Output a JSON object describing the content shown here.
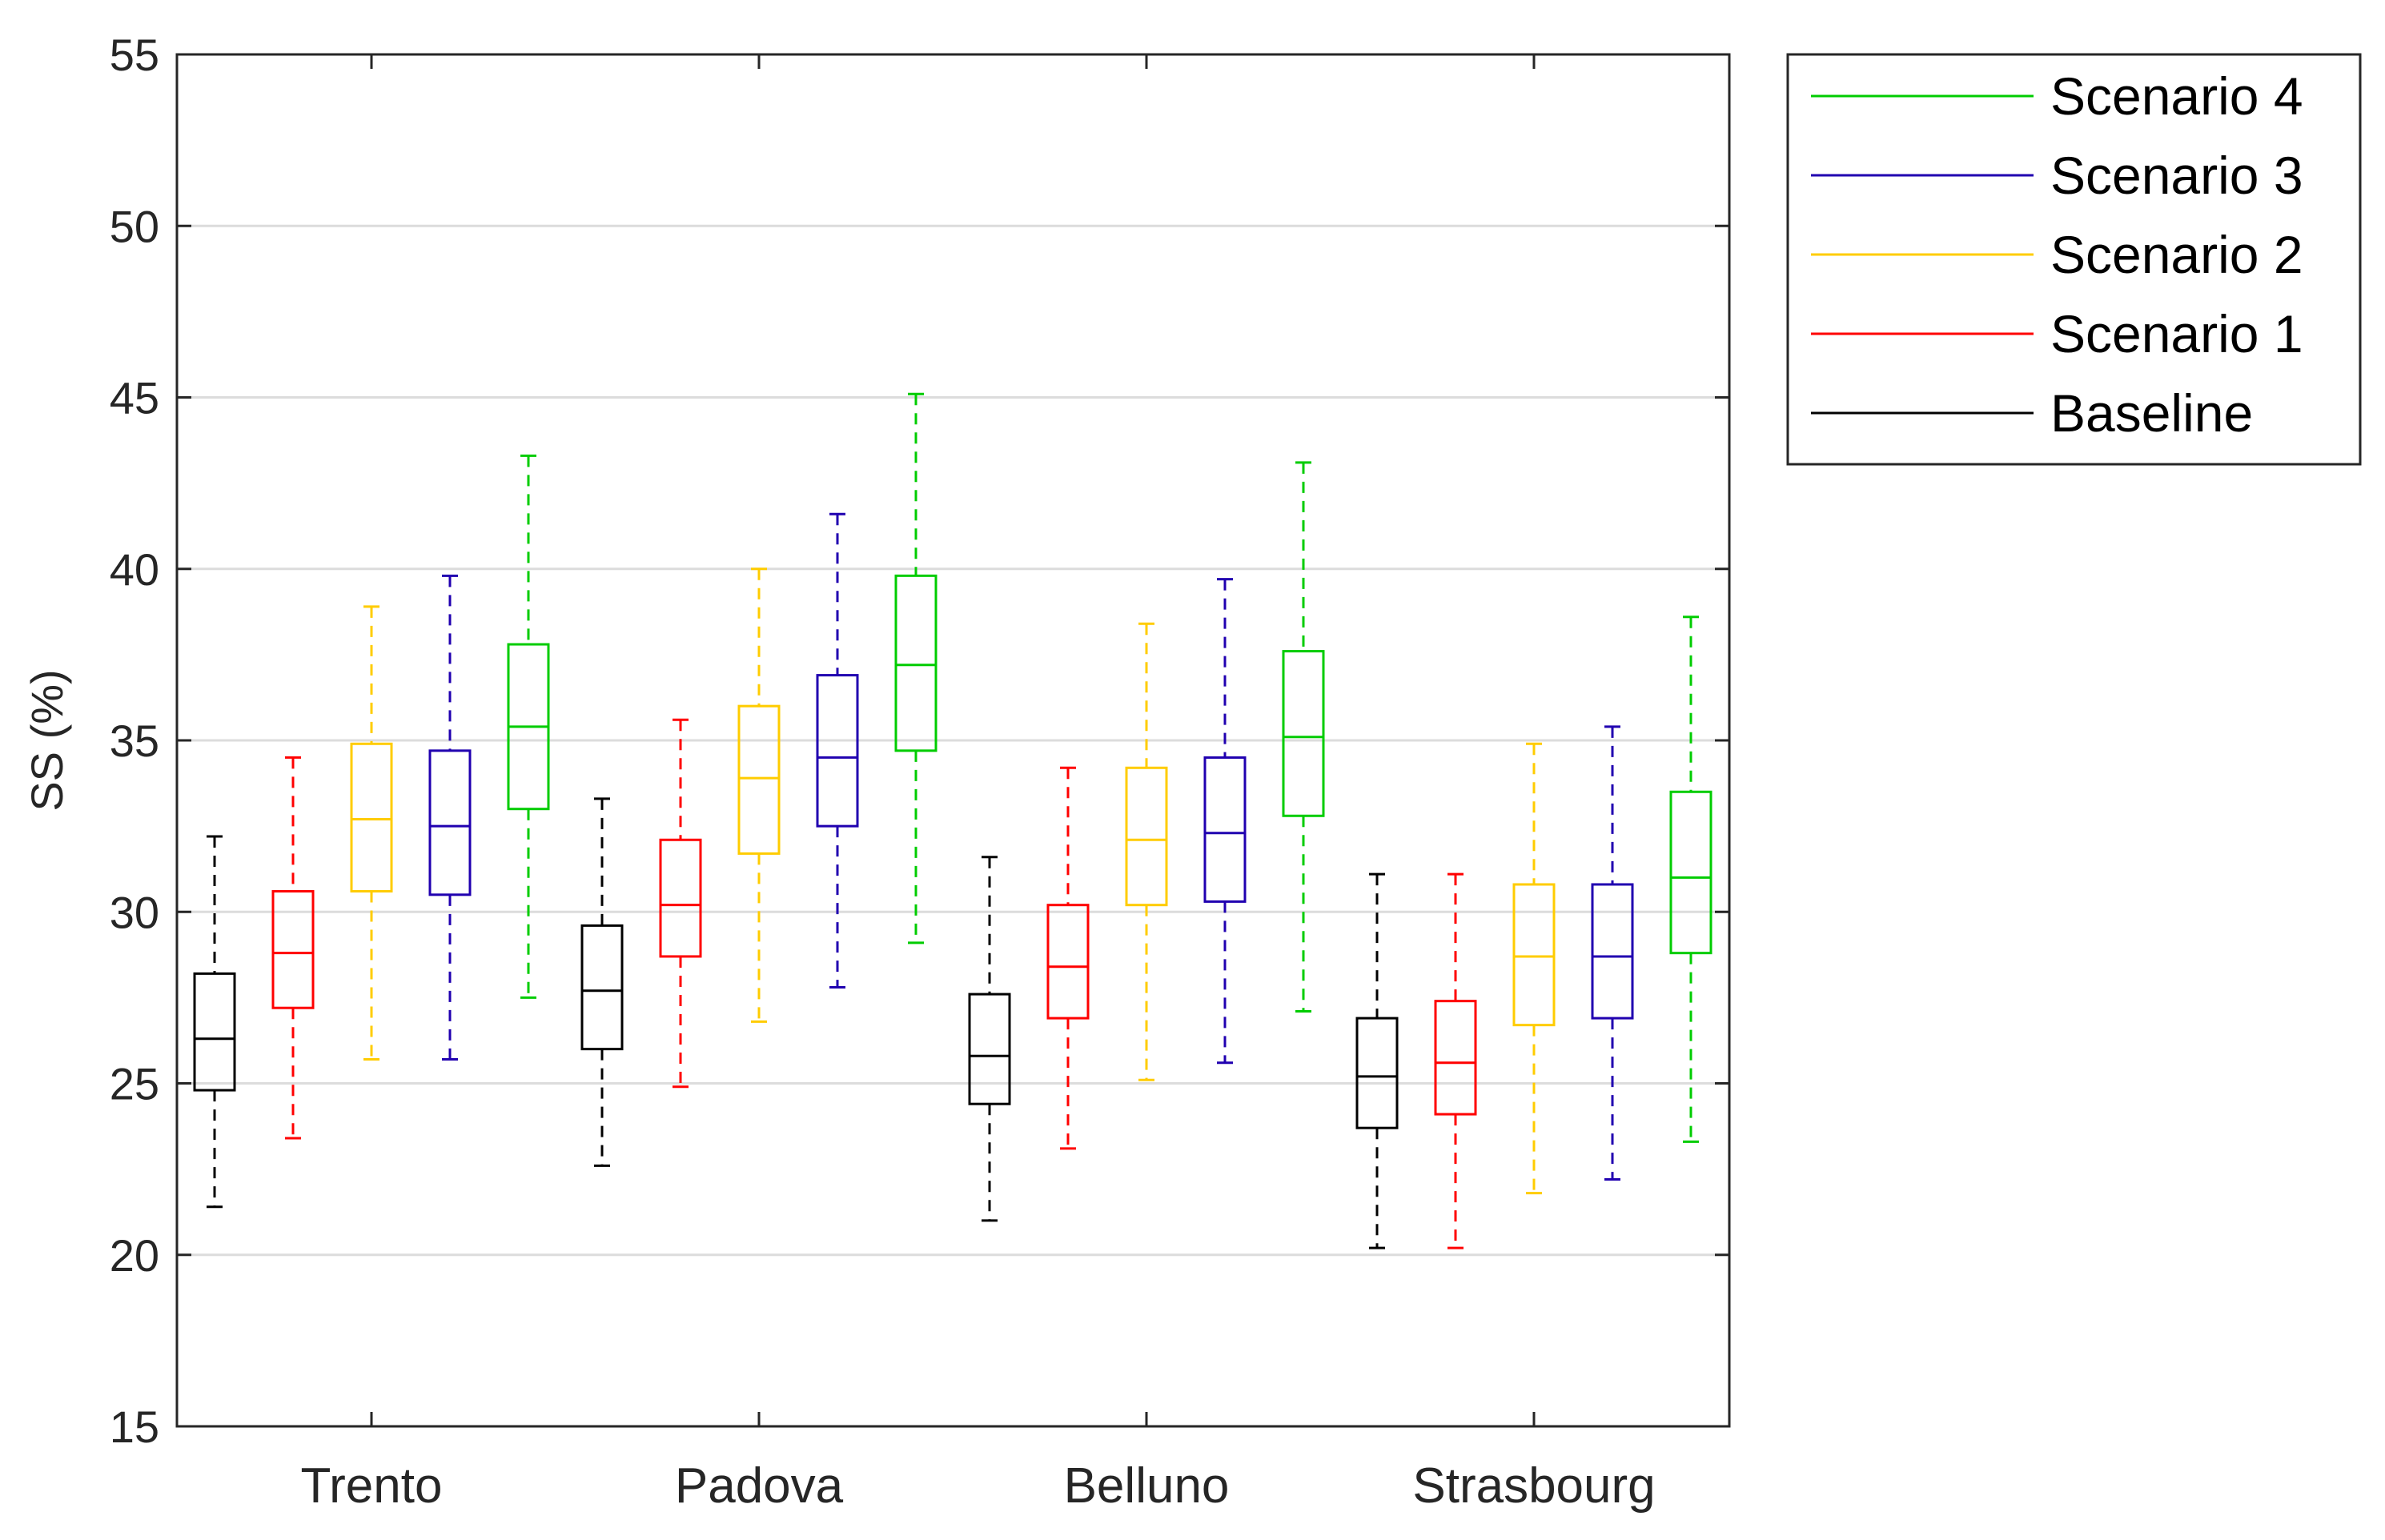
{
  "chart_data": {
    "type": "boxplot",
    "ylabel": "SS (%)",
    "xlabel": "",
    "ylim": [
      15,
      55
    ],
    "yticks": [
      15,
      20,
      25,
      30,
      35,
      40,
      45,
      50,
      55
    ],
    "grid": "horizontal",
    "categories": [
      "Trento",
      "Padova",
      "Belluno",
      "Strasbourg"
    ],
    "series": [
      {
        "name": "Baseline",
        "color": "#000000",
        "boxes": [
          {
            "min": 21.4,
            "q1": 24.8,
            "median": 26.3,
            "q3": 28.2,
            "max": 32.2
          },
          {
            "min": 22.6,
            "q1": 26.0,
            "median": 27.7,
            "q3": 29.6,
            "max": 33.3
          },
          {
            "min": 21.0,
            "q1": 24.4,
            "median": 25.8,
            "q3": 27.6,
            "max": 31.6
          },
          {
            "min": 20.2,
            "q1": 23.7,
            "median": 25.2,
            "q3": 26.9,
            "max": 31.1
          }
        ]
      },
      {
        "name": "Scenario 1",
        "color": "#ff0000",
        "boxes": [
          {
            "min": 23.4,
            "q1": 27.2,
            "median": 28.8,
            "q3": 30.6,
            "max": 34.5
          },
          {
            "min": 24.9,
            "q1": 28.7,
            "median": 30.2,
            "q3": 32.1,
            "max": 35.6
          },
          {
            "min": 23.1,
            "q1": 26.9,
            "median": 28.4,
            "q3": 30.2,
            "max": 34.2
          },
          {
            "min": 20.2,
            "q1": 24.1,
            "median": 25.6,
            "q3": 27.4,
            "max": 31.1
          }
        ]
      },
      {
        "name": "Scenario 2",
        "color": "#ffcc00",
        "boxes": [
          {
            "min": 25.7,
            "q1": 30.6,
            "median": 32.7,
            "q3": 34.9,
            "max": 38.9
          },
          {
            "min": 26.8,
            "q1": 31.7,
            "median": 33.9,
            "q3": 36.0,
            "max": 40.0
          },
          {
            "min": 25.1,
            "q1": 30.2,
            "median": 32.1,
            "q3": 34.2,
            "max": 38.4
          },
          {
            "min": 21.8,
            "q1": 26.7,
            "median": 28.7,
            "q3": 30.8,
            "max": 34.9
          }
        ]
      },
      {
        "name": "Scenario 3",
        "color": "#2000b0",
        "boxes": [
          {
            "min": 25.7,
            "q1": 30.5,
            "median": 32.5,
            "q3": 34.7,
            "max": 39.8
          },
          {
            "min": 27.8,
            "q1": 32.5,
            "median": 34.5,
            "q3": 36.9,
            "max": 41.6
          },
          {
            "min": 25.6,
            "q1": 30.3,
            "median": 32.3,
            "q3": 34.5,
            "max": 39.7
          },
          {
            "min": 22.2,
            "q1": 26.9,
            "median": 28.7,
            "q3": 30.8,
            "max": 35.4
          }
        ]
      },
      {
        "name": "Scenario 4",
        "color": "#00cc00",
        "boxes": [
          {
            "min": 27.5,
            "q1": 33.0,
            "median": 35.4,
            "q3": 37.8,
            "max": 43.3
          },
          {
            "min": 29.1,
            "q1": 34.7,
            "median": 37.2,
            "q3": 39.8,
            "max": 45.1
          },
          {
            "min": 27.1,
            "q1": 32.8,
            "median": 35.1,
            "q3": 37.6,
            "max": 43.1
          },
          {
            "min": 23.3,
            "q1": 28.8,
            "median": 31.0,
            "q3": 33.5,
            "max": 38.6
          }
        ]
      }
    ],
    "legend": {
      "placement": "outside-top-right",
      "entries": [
        "Scenario 4",
        "Scenario 3",
        "Scenario 2",
        "Scenario 1",
        "Baseline"
      ]
    }
  }
}
